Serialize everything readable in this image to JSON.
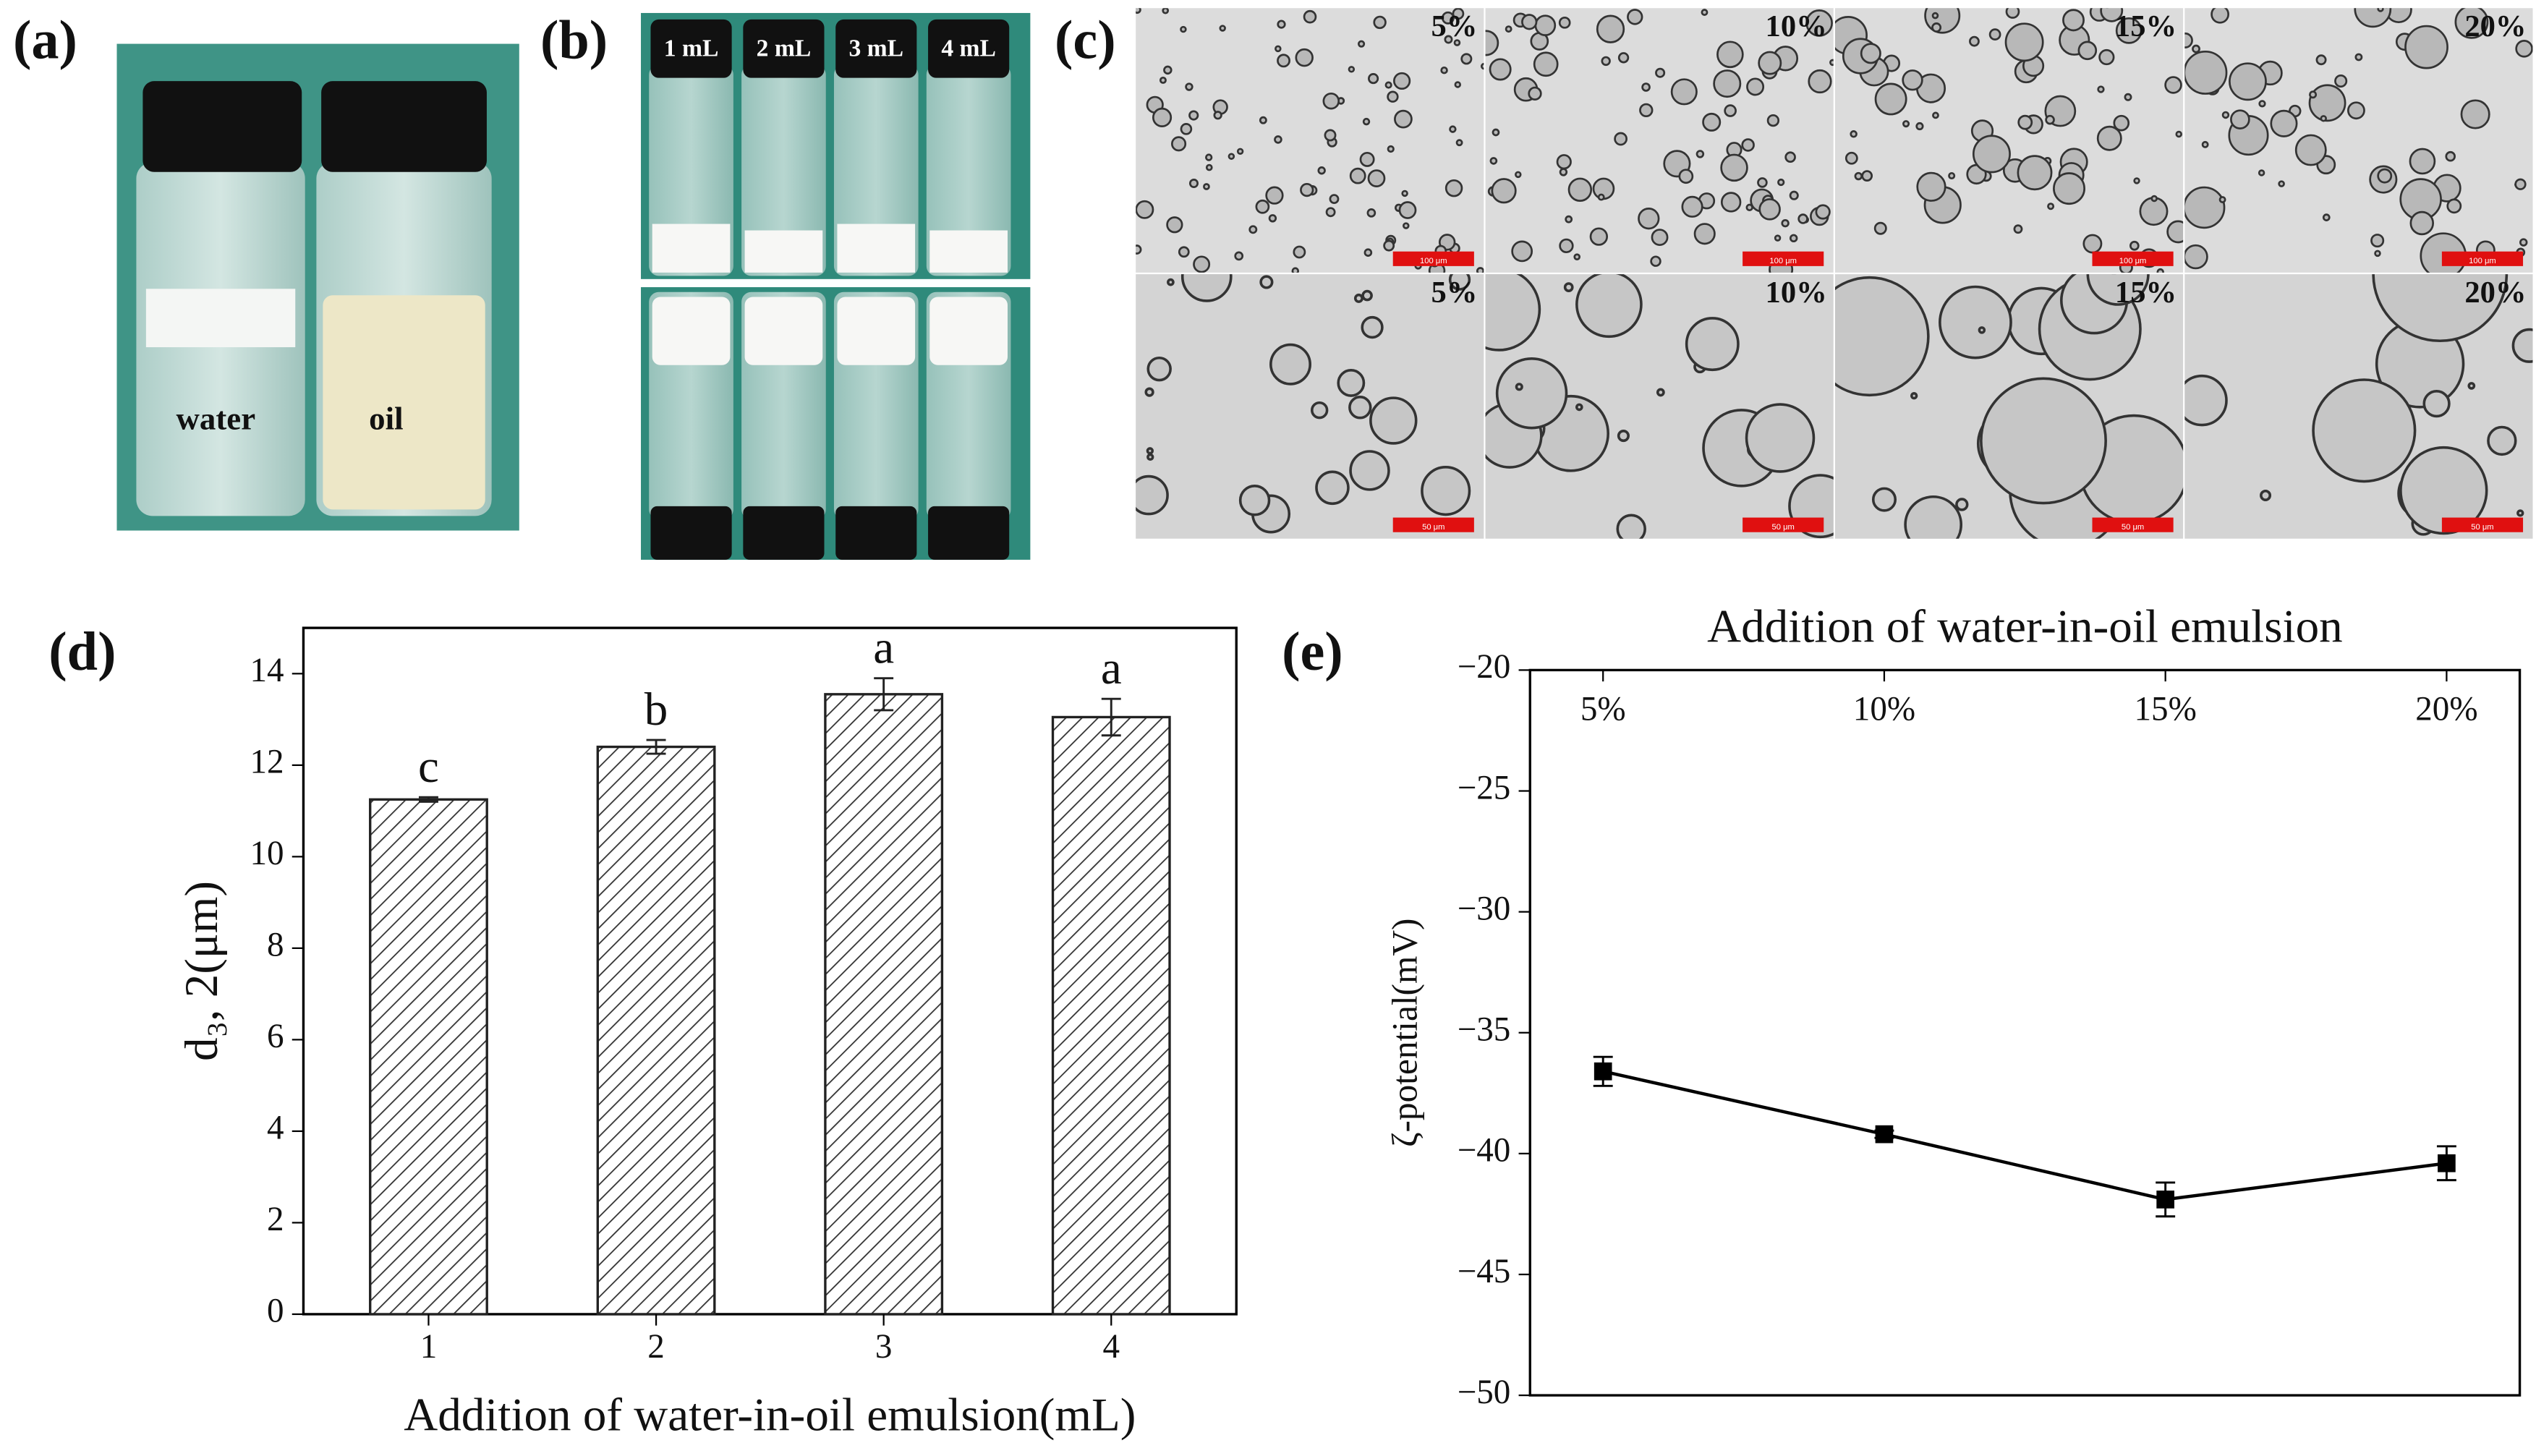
{
  "panel_labels": [
    "(a)",
    "(b)",
    "(c)",
    "(d)",
    "(e)"
  ],
  "photo_a": {
    "labels": [
      "water",
      "oil"
    ]
  },
  "photo_b": {
    "labels": [
      "1 mL",
      "2 mL",
      "3 mL",
      "4 mL"
    ]
  },
  "photo_c": {
    "columns": [
      "5%",
      "10%",
      "15%",
      "20%"
    ],
    "scale_bars": [
      "100 μm",
      "50 μm"
    ]
  },
  "chart_data": [
    {
      "type": "bar",
      "categories": [
        "1",
        "2",
        "3",
        "4"
      ],
      "values": [
        11.25,
        12.4,
        13.55,
        13.05
      ],
      "errors": [
        0.05,
        0.15,
        0.35,
        0.4
      ],
      "annotations": [
        "c",
        "b",
        "a",
        "a"
      ],
      "xlabel": "Addition of water-in-oil emulsion(mL)",
      "ylabel": "d₃, 2(μm)",
      "ylim": [
        0,
        15
      ],
      "yticks": [
        0,
        2,
        4,
        6,
        8,
        10,
        12,
        14
      ],
      "color": "#222222"
    },
    {
      "type": "line",
      "categories": [
        "5%",
        "10%",
        "15%",
        "20%"
      ],
      "values": [
        -36.6,
        -39.2,
        -41.9,
        -40.4
      ],
      "errors": [
        0.6,
        0.15,
        0.7,
        0.7
      ],
      "xlabel": "Addition of water-in-oil emulsion",
      "ylabel": "ζ-potential(mV)",
      "ylim": [
        -50,
        -20
      ],
      "yticks": [
        {
          "value": -20,
          "label": "−20"
        },
        {
          "value": -25,
          "label": "−25"
        },
        {
          "value": -30,
          "label": "−30"
        },
        {
          "value": -35,
          "label": "−35"
        },
        {
          "value": -40,
          "label": "−40"
        },
        {
          "value": -45,
          "label": "−45"
        },
        {
          "value": -50,
          "label": "−50"
        }
      ],
      "color": "#000000"
    }
  ]
}
